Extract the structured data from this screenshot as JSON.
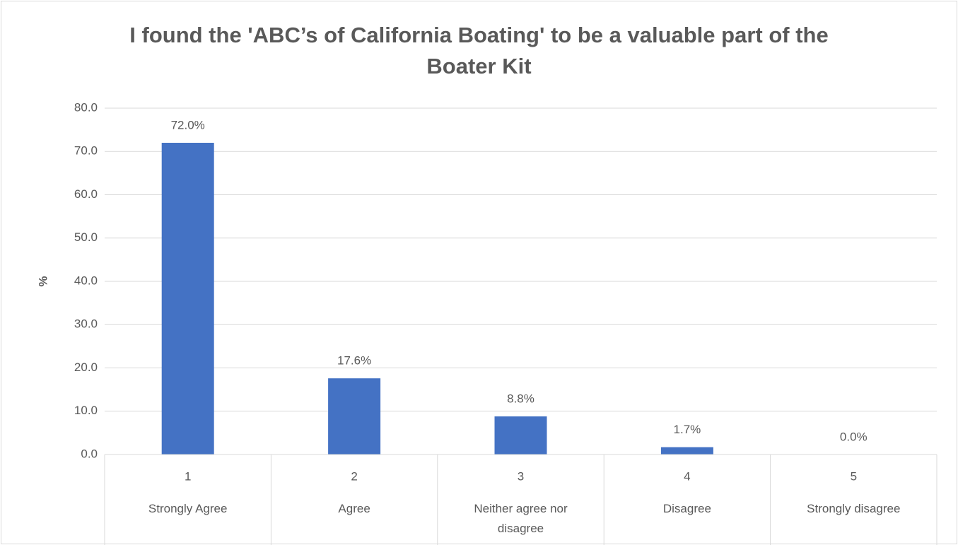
{
  "chart_data": {
    "type": "bar",
    "title": "I found the 'ABC’s of California Boating' to be a valuable part of the Boater Kit",
    "y_label": "%",
    "categories": [
      "1",
      "2",
      "3",
      "4",
      "5"
    ],
    "category_names": [
      "Strongly Agree",
      "Agree",
      "Neither agree nor disagree",
      "Disagree",
      "Strongly disagree"
    ],
    "values": [
      72.0,
      17.6,
      8.8,
      1.7,
      0.0
    ],
    "value_labels": [
      "72.0%",
      "17.6%",
      "8.8%",
      "1.7%",
      "0.0%"
    ],
    "color": "#4472c4",
    "ylim": [
      0,
      80
    ],
    "yticks": [
      {
        "value": 0,
        "label": "0.0"
      },
      {
        "value": 10,
        "label": "10.0"
      },
      {
        "value": 20,
        "label": "20.0"
      },
      {
        "value": 30,
        "label": "30.0"
      },
      {
        "value": 40,
        "label": "40.0"
      },
      {
        "value": 50,
        "label": "50.0"
      },
      {
        "value": 60,
        "label": "60.0"
      },
      {
        "value": 70,
        "label": "70.0"
      },
      {
        "value": 80,
        "label": "80.0"
      }
    ],
    "grid": true
  }
}
